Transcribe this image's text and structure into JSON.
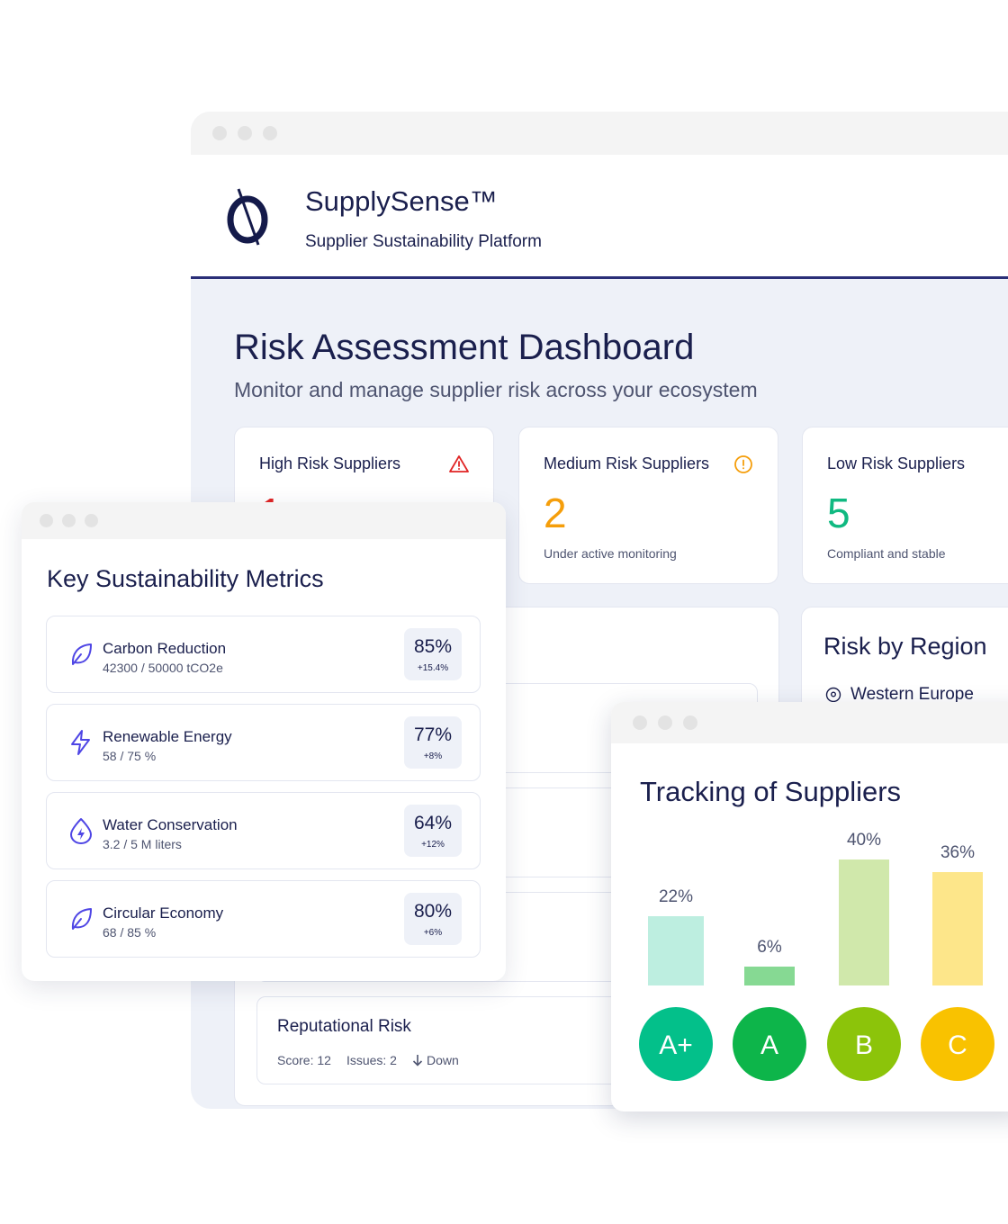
{
  "app": {
    "name": "SupplySense™",
    "tagline": "Supplier Sustainability Platform"
  },
  "dashboard": {
    "title": "Risk Assessment Dashboard",
    "subtitle": "Monitor and manage supplier risk across your ecosystem",
    "risk_cards": [
      {
        "label": "High Risk Suppliers",
        "value": "1",
        "note": "",
        "color": "#e02424",
        "icon": "alert-triangle-icon"
      },
      {
        "label": "Medium Risk Suppliers",
        "value": "2",
        "note": "Under active monitoring",
        "color": "#f59e0b",
        "icon": "alert-circle-icon"
      },
      {
        "label": "Low Risk Suppliers",
        "value": "5",
        "note": "Compliant and stable",
        "color": "#10b981",
        "icon": ""
      }
    ],
    "region": {
      "title": "Risk by Region",
      "items": [
        {
          "label": "Western Europe",
          "icon": "map-pin-icon"
        }
      ]
    },
    "reputational": {
      "title": "Reputational Risk",
      "score": "Score: 12",
      "issues": "Issues: 2",
      "trend": "Down",
      "trend_icon": "arrow-down-icon"
    }
  },
  "metrics": {
    "title": "Key Sustainability Metrics",
    "items": [
      {
        "name": "Carbon Reduction",
        "detail": "42300 / 50000 tCO2e",
        "percent": "85%",
        "delta": "+15.4%",
        "icon": "leaf-icon"
      },
      {
        "name": "Renewable Energy",
        "detail": "58 / 75 %",
        "percent": "77%",
        "delta": "+8%",
        "icon": "lightning-icon"
      },
      {
        "name": "Water Conservation",
        "detail": "3.2 / 5 M liters",
        "percent": "64%",
        "delta": "+12%",
        "icon": "water-drop-icon"
      },
      {
        "name": "Circular Economy",
        "detail": "68 / 85 %",
        "percent": "80%",
        "delta": "+6%",
        "icon": "leaf-icon"
      }
    ]
  },
  "tracking": {
    "title": "Tracking of Suppliers"
  },
  "chart_data": {
    "type": "bar",
    "categories": [
      "A+",
      "A",
      "B",
      "C"
    ],
    "values": [
      22,
      6,
      40,
      36
    ],
    "value_labels": [
      "22%",
      "6%",
      "40%",
      "36%"
    ],
    "bar_colors": [
      "#bdeee0",
      "#86d993",
      "#d0e8ab",
      "#fde68a"
    ],
    "badge_colors": [
      "#03c08a",
      "#0db54a",
      "#8cc40a",
      "#f9c200"
    ],
    "ylim": [
      0,
      40
    ],
    "grid": false
  }
}
